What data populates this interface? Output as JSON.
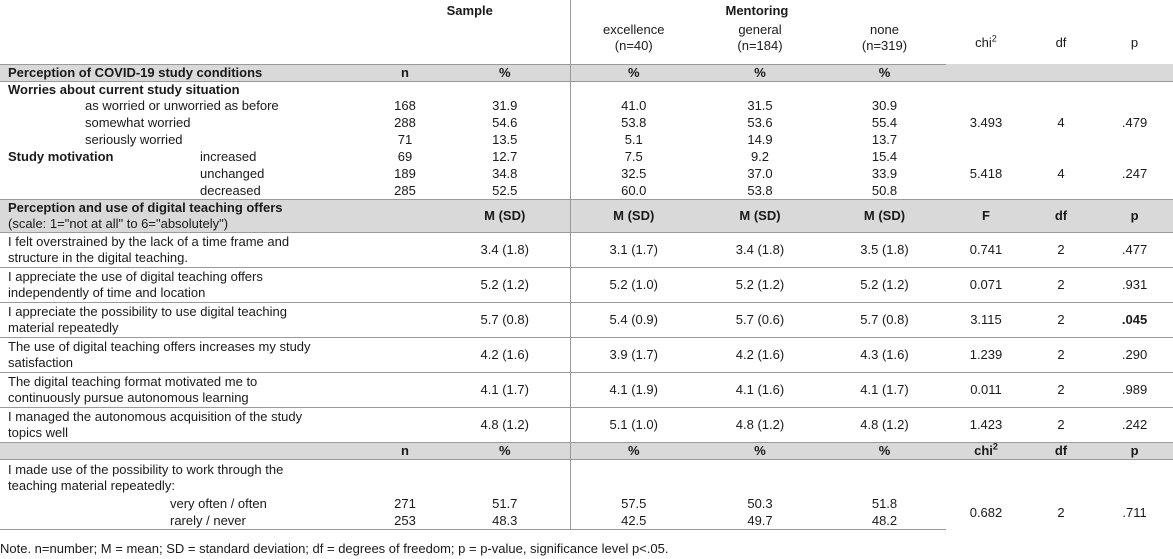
{
  "header": {
    "sample": "Sample",
    "mentoring": "Mentoring",
    "excellence": "excellence",
    "excellence_n": "(n=40)",
    "general": "general",
    "general_n": "(n=184)",
    "none": "none",
    "none_n": "(n=319)",
    "chi": "chi",
    "chi_sup": "2",
    "df": "df",
    "p": "p"
  },
  "section1": {
    "title": "Perception of COVID-19 study conditions",
    "n": "n",
    "pct": "%",
    "pct_exc": "%",
    "pct_gen": "%",
    "pct_none": "%"
  },
  "worries": {
    "title": "Worries about current study situation",
    "rows": [
      {
        "label": "as worried or unworried as before",
        "n": "168",
        "pct": "31.9",
        "exc": "41.0",
        "gen": "31.5",
        "none": "30.9"
      },
      {
        "label": "somewhat worried",
        "n": "288",
        "pct": "54.6",
        "exc": "53.8",
        "gen": "53.6",
        "none": "55.4"
      },
      {
        "label": "seriously worried",
        "n": "71",
        "pct": "13.5",
        "exc": "5.1",
        "gen": "14.9",
        "none": "13.7"
      }
    ],
    "chi": "3.493",
    "df": "4",
    "p": ".479"
  },
  "motivation": {
    "title": "Study motivation",
    "rows": [
      {
        "label": "increased",
        "n": "69",
        "pct": "12.7",
        "exc": "7.5",
        "gen": "9.2",
        "none": "15.4"
      },
      {
        "label": "unchanged",
        "n": "189",
        "pct": "34.8",
        "exc": "32.5",
        "gen": "37.0",
        "none": "33.9"
      },
      {
        "label": "decreased",
        "n": "285",
        "pct": "52.5",
        "exc": "60.0",
        "gen": "53.8",
        "none": "50.8"
      }
    ],
    "chi": "5.418",
    "df": "4",
    "p": ".247"
  },
  "section2": {
    "title": "Perception and use of digital teaching offers",
    "subtitle": "(scale: 1=\"not at all\" to 6=\"absolutely\")",
    "m_sd": "M (SD)",
    "m_sd_exc": "M (SD)",
    "m_sd_gen": "M (SD)",
    "m_sd_none": "M (SD)",
    "f": "F",
    "df": "df",
    "p": "p"
  },
  "items": [
    {
      "l1": "I felt overstrained by the lack of a time frame and",
      "l2": "structure in the digital teaching.",
      "sample": "3.4 (1.8)",
      "exc": "3.1 (1.7)",
      "gen": "3.4 (1.8)",
      "none": "3.5 (1.8)",
      "f": "0.741",
      "df": "2",
      "p": ".477"
    },
    {
      "l1": "I appreciate the use of digital teaching offers",
      "l2": "independently of time and location",
      "sample": "5.2 (1.2)",
      "exc": "5.2 (1.0)",
      "gen": "5.2 (1.2)",
      "none": "5.2 (1.2)",
      "f": "0.071",
      "df": "2",
      "p": ".931"
    },
    {
      "l1": "I appreciate the possibility to use digital teaching",
      "l2": "material repeatedly",
      "sample": "5.7 (0.8)",
      "exc": "5.4 (0.9)",
      "gen": "5.7 (0.6)",
      "none": "5.7 (0.8)",
      "f": "3.115",
      "df": "2",
      "p": ".045"
    },
    {
      "l1": "The use of digital teaching offers increases my study",
      "l2": "satisfaction",
      "sample": "4.2 (1.6)",
      "exc": "3.9 (1.7)",
      "gen": "4.2 (1.6)",
      "none": "4.3 (1.6)",
      "f": "1.239",
      "df": "2",
      "p": ".290"
    },
    {
      "l1": "The digital teaching format motivated me to",
      "l2": "continuously pursue autonomous learning",
      "sample": "4.1 (1.7)",
      "exc": "4.1 (1.9)",
      "gen": "4.1 (1.6)",
      "none": "4.1 (1.7)",
      "f": "0.011",
      "df": "2",
      "p": ".989"
    },
    {
      "l1": "I managed the autonomous acquisition of the study",
      "l2": "topics well",
      "sample": "4.8 (1.2)",
      "exc": "5.1 (1.0)",
      "gen": "4.8 (1.2)",
      "none": "4.8 (1.2)",
      "f": "1.423",
      "df": "2",
      "p": ".242"
    }
  ],
  "section3": {
    "n": "n",
    "pct": "%",
    "pct_exc": "%",
    "pct_gen": "%",
    "pct_none": "%",
    "chi": "chi",
    "chi_sup": "2",
    "df": "df",
    "p": "p"
  },
  "repeat": {
    "l1": "I made use of the possibility to work through the",
    "l2": "teaching material repeatedly:",
    "rows": [
      {
        "label": "very often / often",
        "n": "271",
        "pct": "51.7",
        "exc": "57.5",
        "gen": "50.3",
        "none": "51.8"
      },
      {
        "label": "rarely / never",
        "n": "253",
        "pct": "48.3",
        "exc": "42.5",
        "gen": "49.7",
        "none": "48.2"
      }
    ],
    "chi": "0.682",
    "df": "2",
    "p": ".711"
  },
  "note": "Note. n=number; M = mean; SD = standard deviation; df = degrees of freedom; p = p-value, significance level p<.05."
}
